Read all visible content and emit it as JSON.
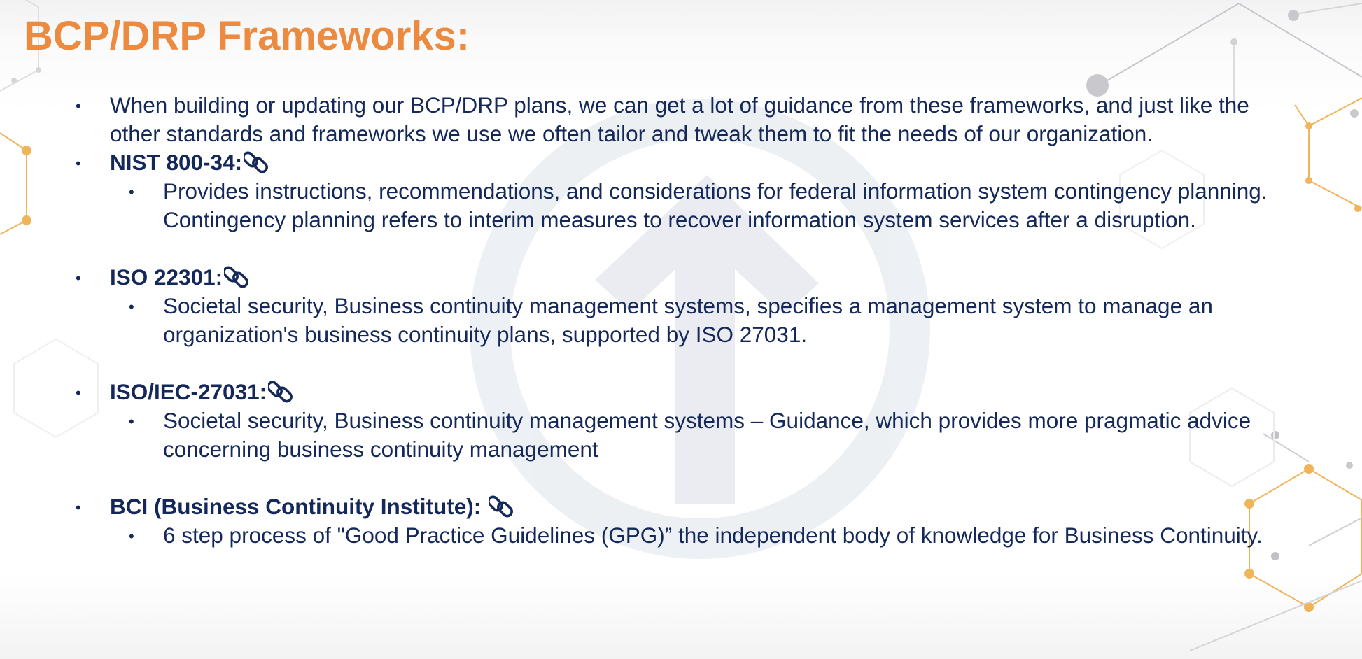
{
  "slide": {
    "title": "BCP/DRP Frameworks:",
    "bullet_glyph": "•",
    "intro": "When building or updating our BCP/DRP plans, we can get a lot of guidance from these frameworks, and just like the other standards and frameworks we use we often tailor and tweak them to fit the needs of our organization.",
    "frameworks": [
      {
        "heading": "NIST 800-34:",
        "link_icon": "chain-link-icon",
        "description": "Provides instructions, recommendations, and considerations for federal information system contingency planning. Contingency planning refers to interim measures to recover information system services after a disruption."
      },
      {
        "heading": "ISO 22301:",
        "link_icon": "chain-link-icon",
        "description": "Societal security, Business continuity management systems, specifies a management system to manage an organization's business continuity plans, supported by ISO 27031."
      },
      {
        "heading": "ISO/IEC-27031:",
        "link_icon": "chain-link-icon",
        "description": "Societal security, Business continuity management systems – Guidance, which provides more pragmatic advice concerning business continuity management"
      },
      {
        "heading": "BCI (Business Continuity Institute):",
        "link_icon": "chain-link-icon",
        "description": "6 step process of \"Good Practice Guidelines (GPG)” the independent body of knowledge for Business Continuity."
      }
    ]
  },
  "colors": {
    "title": "#ec8a3f",
    "body_text": "#14285a",
    "watermark": "#d5dbe4",
    "decor_orange": "#f0b45a",
    "decor_gray": "#c8c8cc"
  },
  "decorations": {
    "watermark_icon": "up-arrow-logo-icon",
    "network_pattern": "hexagon-network-pattern"
  }
}
